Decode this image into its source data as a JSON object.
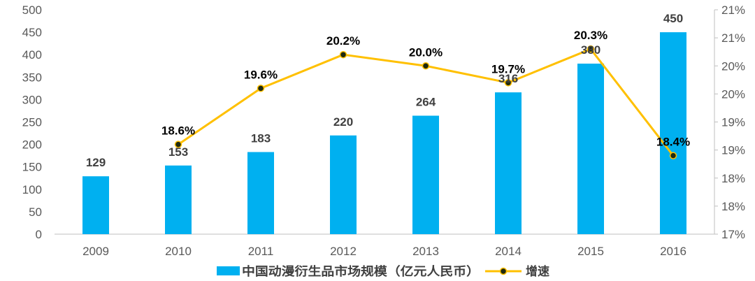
{
  "chart_data": {
    "type": "bar",
    "categories": [
      "2009",
      "2010",
      "2011",
      "2012",
      "2013",
      "2014",
      "2015",
      "2016"
    ],
    "series": [
      {
        "name": "中国动漫衍生品市场规模（亿元人民币）",
        "type": "bar",
        "axis": "left",
        "values": [
          129,
          153,
          183,
          220,
          264,
          316,
          380,
          450
        ],
        "labels": [
          "129",
          "153",
          "183",
          "220",
          "264",
          "316",
          "380",
          "450"
        ]
      },
      {
        "name": "增速",
        "type": "line",
        "axis": "right",
        "values": [
          null,
          18.6,
          19.6,
          20.2,
          20.0,
          19.7,
          20.3,
          18.4
        ],
        "labels": [
          "",
          "18.6%",
          "19.6%",
          "20.2%",
          "20.0%",
          "19.7%",
          "20.3%",
          "18.4%"
        ]
      }
    ],
    "y_left": {
      "ylim": [
        0,
        500
      ],
      "ticks": [
        0,
        50,
        100,
        150,
        200,
        250,
        300,
        350,
        400,
        450,
        500
      ],
      "tick_labels": [
        "0",
        "50",
        "100",
        "150",
        "200",
        "250",
        "300",
        "350",
        "400",
        "450",
        "500"
      ]
    },
    "y_right": {
      "ylim": [
        17.0,
        21.0
      ],
      "ticks": [
        17.0,
        17.5,
        18.0,
        18.5,
        19.0,
        19.5,
        20.0,
        20.5,
        21.0
      ],
      "tick_labels": [
        "17%",
        "18%",
        "18%",
        "19%",
        "19%",
        "20%",
        "20%",
        "21%",
        "21%"
      ]
    },
    "legend": {
      "position": "bottom-center",
      "items": [
        "中国动漫衍生品市场规模（亿元人民币）",
        "增速"
      ]
    },
    "colors": {
      "bar": "#00B0F0",
      "line": "#FFC000",
      "marker": "#1F2A10",
      "axis": "#BFBFBF"
    },
    "title": "",
    "xlabel": "",
    "ylabel": ""
  }
}
